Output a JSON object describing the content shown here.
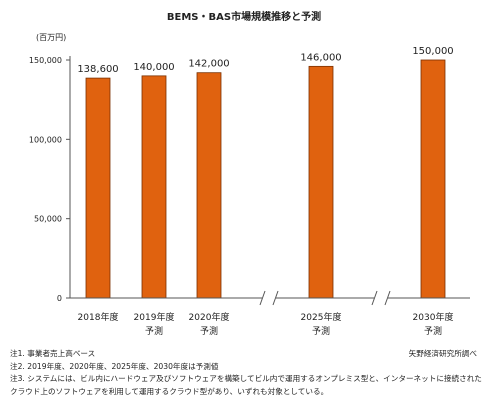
{
  "chart_data": {
    "type": "bar",
    "title": "BEMS・BAS市場規模推移と予測",
    "unit_label": "(百万円)",
    "categories": [
      "2018年度",
      "2019年度",
      "2020年度",
      "2025年度",
      "2030年度"
    ],
    "category_sublabels": [
      "",
      "予測",
      "予測",
      "予測",
      "予測"
    ],
    "values": [
      138600,
      140000,
      142000,
      146000,
      150000
    ],
    "value_labels": [
      "138,600",
      "140,000",
      "142,000",
      "146,000",
      "150,000"
    ],
    "ylim": [
      0,
      150000
    ],
    "yticks": [
      0,
      50000,
      100000,
      150000
    ],
    "ytick_labels": [
      "0",
      "50,000",
      "100,000",
      "150,000"
    ],
    "axis_breaks": [
      "between 2020年度 and 2025年度",
      "between 2025年度 and 2030年度"
    ],
    "bar_color": "#e0620f",
    "bar_edge_color": "#7a2f00",
    "grid": false
  },
  "notes": [
    "注1. 事業者売上高ベース",
    "注2. 2019年度、2020年度、2025年度、2030年度は予測値",
    "注3. システムには、ビル内にハードウェア及びソフトウェアを構築してビル内で運用するオンプレミス型と、インターネットに接続された",
    "クラウド上のソフトウェアを利用して運用するクラウド型があり、いずれも対象としている。"
  ],
  "source": "矢野経済研究所調べ"
}
